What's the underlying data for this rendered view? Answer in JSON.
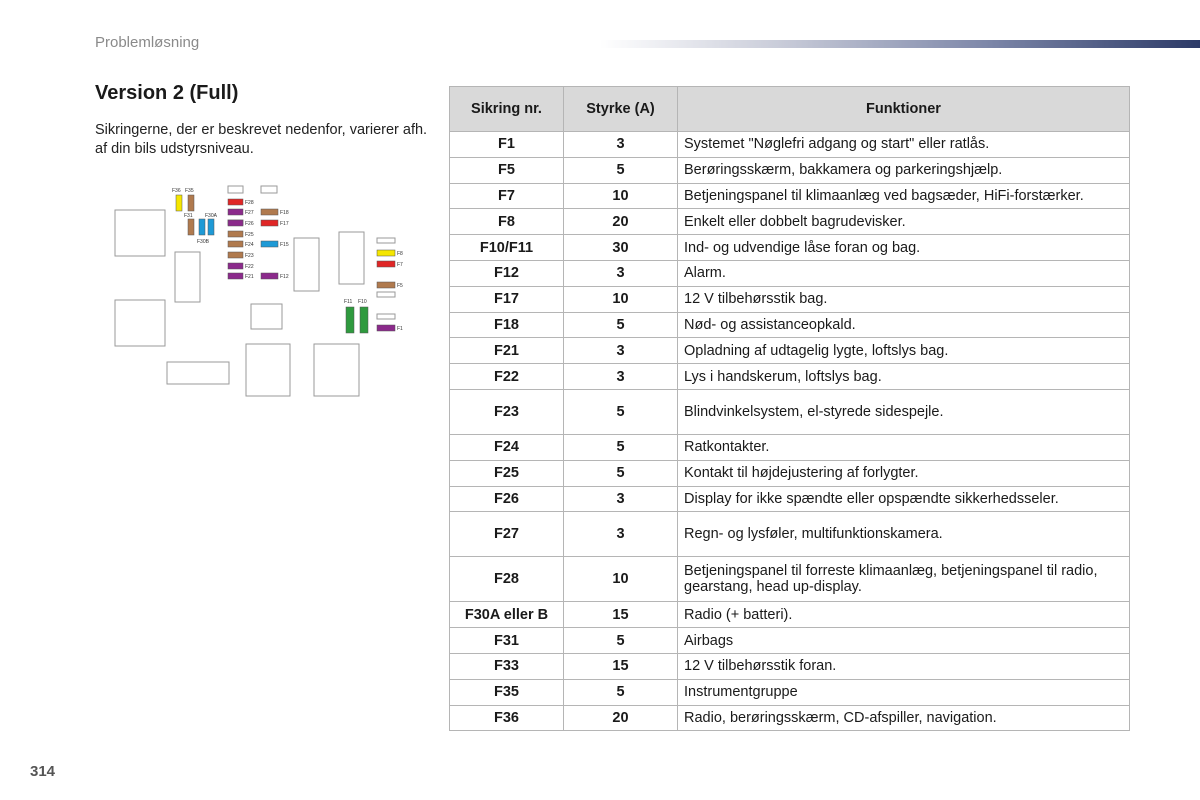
{
  "header": {
    "section": "Problemløsning"
  },
  "heading": "Version 2 (Full)",
  "intro": "Sikringerne, der er beskrevet nedenfor, varierer afh. af din bils udstyrsniveau.",
  "page_number": "314",
  "table": {
    "headers": [
      "Sikring nr.",
      "Styrke (A)",
      "Funktioner"
    ],
    "rows": [
      {
        "id": "F1",
        "amp": "3",
        "fn": "Systemet \"Nøglefri adgang og start\" eller ratlås."
      },
      {
        "id": "F5",
        "amp": "5",
        "fn": "Berøringsskærm, bakkamera og parkeringshjælp."
      },
      {
        "id": "F7",
        "amp": "10",
        "fn": "Betjeningspanel til klimaanlæg ved bagsæder, HiFi-forstærker."
      },
      {
        "id": "F8",
        "amp": "20",
        "fn": "Enkelt eller dobbelt bagrudevisker."
      },
      {
        "id": "F10/F11",
        "amp": "30",
        "fn": "Ind- og udvendige låse foran og bag."
      },
      {
        "id": "F12",
        "amp": "3",
        "fn": "Alarm."
      },
      {
        "id": "F17",
        "amp": "10",
        "fn": "12 V tilbehørsstik bag."
      },
      {
        "id": "F18",
        "amp": "5",
        "fn": "Nød- og assistanceopkald."
      },
      {
        "id": "F21",
        "amp": "3",
        "fn": "Opladning af udtagelig lygte, loftslys bag."
      },
      {
        "id": "F22",
        "amp": "3",
        "fn": "Lys i handskerum, loftslys bag."
      },
      {
        "id": "F23",
        "amp": "5",
        "fn": "Blindvinkelsystem, el-styrede sidespejle.",
        "tall": true
      },
      {
        "id": "F24",
        "amp": "5",
        "fn": "Ratkontakter."
      },
      {
        "id": "F25",
        "amp": "5",
        "fn": "Kontakt til højdejustering af forlygter."
      },
      {
        "id": "F26",
        "amp": "3",
        "fn": "Display for ikke spændte eller opspændte sikkerhedsseler."
      },
      {
        "id": "F27",
        "amp": "3",
        "fn": "Regn- og lysføler, multifunktionskamera.",
        "tall": true
      },
      {
        "id": "F28",
        "amp": "10",
        "fn": "Betjeningspanel til forreste klimaanlæg, betjeningspanel til radio, gearstang, head up-display.",
        "tall": true
      },
      {
        "id": "F30A eller B",
        "amp": "15",
        "fn": "Radio (+ batteri)."
      },
      {
        "id": "F31",
        "amp": "5",
        "fn": "Airbags"
      },
      {
        "id": "F33",
        "amp": "15",
        "fn": "12 V tilbehørsstik foran."
      },
      {
        "id": "F35",
        "amp": "5",
        "fn": "Instrumentgruppe"
      },
      {
        "id": "F36",
        "amp": "20",
        "fn": "Radio, berøringsskærm, CD-afspiller, navigation."
      }
    ]
  },
  "diagram": {
    "labels": {
      "f36": "F36",
      "f35": "F35",
      "f31": "F31",
      "f30a": "F30A",
      "f30b": "F30B",
      "f28": "F28",
      "f27": "F27",
      "f26": "F26",
      "f25": "F25",
      "f24": "F24",
      "f23": "F23",
      "f22": "F22",
      "f21": "F21",
      "f18": "F18",
      "f17": "F17",
      "f15": "F15",
      "f12": "F12",
      "f8": "F8",
      "f7": "F7",
      "f5": "F5",
      "f1": "F1",
      "f11": "F11",
      "f10": "F10"
    },
    "colors": {
      "yellow": "#f5e600",
      "brown": "#b07a4e",
      "purple": "#8b2a8b",
      "red": "#e02626",
      "blue": "#1e9ad6",
      "green": "#2f9a3e",
      "outline": "#9a9a9a"
    }
  }
}
